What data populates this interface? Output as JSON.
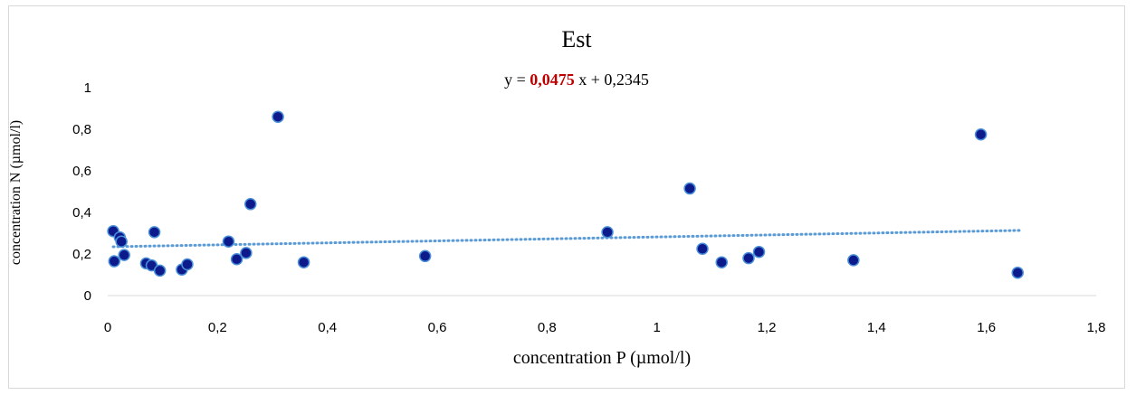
{
  "chart_data": {
    "type": "scatter",
    "title": "Est",
    "equation": {
      "prefix": "y = ",
      "slope_text": "0,0475",
      "suffix": " x + 0,2345"
    },
    "xlabel": "concentration P (µmol/l)",
    "ylabel": "concentration N (µmol/l)",
    "xlim": [
      0,
      1.8
    ],
    "ylim": [
      0,
      1
    ],
    "x_ticks": [
      "0",
      "0,2",
      "0,4",
      "0,6",
      "0,8",
      "1",
      "1,2",
      "1,4",
      "1,6",
      "1,8"
    ],
    "y_ticks": [
      "0",
      "0,2",
      "0,4",
      "0,6",
      "0,8",
      "1"
    ],
    "grid": false,
    "trendline": {
      "type": "linear",
      "slope": 0.0475,
      "intercept": 0.2345,
      "x_range": [
        0.01,
        1.66
      ]
    },
    "colors": {
      "marker_fill": "#0d1a8c",
      "marker_edge": "#4a90d9",
      "trendline": "#5b9bd5",
      "slope_highlight": "#c00000"
    },
    "points": [
      {
        "x": 0.01,
        "y": 0.31
      },
      {
        "x": 0.012,
        "y": 0.165
      },
      {
        "x": 0.022,
        "y": 0.28
      },
      {
        "x": 0.025,
        "y": 0.26
      },
      {
        "x": 0.03,
        "y": 0.195
      },
      {
        "x": 0.07,
        "y": 0.155
      },
      {
        "x": 0.08,
        "y": 0.145
      },
      {
        "x": 0.085,
        "y": 0.305
      },
      {
        "x": 0.095,
        "y": 0.12
      },
      {
        "x": 0.135,
        "y": 0.125
      },
      {
        "x": 0.145,
        "y": 0.15
      },
      {
        "x": 0.22,
        "y": 0.26
      },
      {
        "x": 0.235,
        "y": 0.175
      },
      {
        "x": 0.252,
        "y": 0.205
      },
      {
        "x": 0.26,
        "y": 0.44
      },
      {
        "x": 0.31,
        "y": 0.86
      },
      {
        "x": 0.357,
        "y": 0.16
      },
      {
        "x": 0.578,
        "y": 0.19
      },
      {
        "x": 0.91,
        "y": 0.305
      },
      {
        "x": 1.06,
        "y": 0.515
      },
      {
        "x": 1.083,
        "y": 0.225
      },
      {
        "x": 1.118,
        "y": 0.16
      },
      {
        "x": 1.167,
        "y": 0.18
      },
      {
        "x": 1.186,
        "y": 0.21
      },
      {
        "x": 1.358,
        "y": 0.17
      },
      {
        "x": 1.59,
        "y": 0.775
      },
      {
        "x": 1.657,
        "y": 0.11
      }
    ]
  }
}
